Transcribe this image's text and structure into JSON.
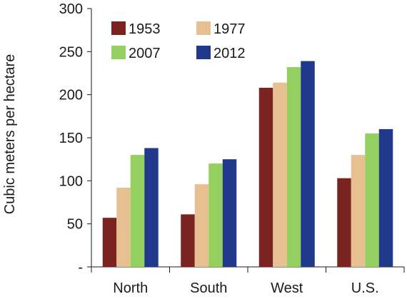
{
  "chart_data": {
    "type": "bar",
    "title": "",
    "xlabel": "",
    "ylabel": "Cubic meters per hectare",
    "categories": [
      "North",
      "South",
      "West",
      "U.S."
    ],
    "series": [
      {
        "name": "1953",
        "color": "#7b2320",
        "values": [
          57,
          61,
          208,
          103
        ]
      },
      {
        "name": "1977",
        "color": "#e6c090",
        "values": [
          92,
          96,
          214,
          130
        ]
      },
      {
        "name": "2007",
        "color": "#93d05f",
        "values": [
          130,
          120,
          232,
          155
        ]
      },
      {
        "name": "2012",
        "color": "#20398a",
        "values": [
          138,
          125,
          239,
          160
        ]
      }
    ],
    "ylim": [
      0,
      300
    ],
    "yticks": [
      {
        "value": 0,
        "label": "-"
      },
      {
        "value": 50,
        "label": "50"
      },
      {
        "value": 100,
        "label": "100"
      },
      {
        "value": 150,
        "label": "150"
      },
      {
        "value": 200,
        "label": "200"
      },
      {
        "value": 250,
        "label": "250"
      },
      {
        "value": 300,
        "label": "300"
      }
    ],
    "grid": false,
    "legend": {
      "placement": "top-left",
      "columns": 2
    }
  }
}
